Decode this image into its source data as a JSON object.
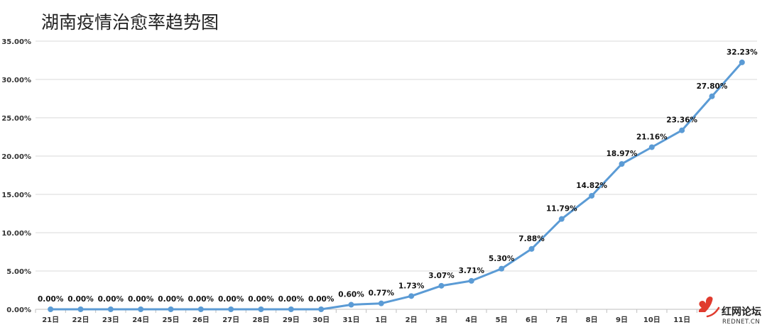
{
  "chart_data": {
    "type": "line",
    "title": "湖南疫情治愈率趋势图",
    "categories": [
      "21日",
      "22日",
      "23日",
      "24日",
      "25日",
      "26日",
      "27日",
      "28日",
      "29日",
      "30日",
      "31日",
      "1日",
      "2日",
      "3日",
      "4日",
      "5日",
      "6日",
      "7日",
      "8日",
      "9日",
      "10日",
      "11日",
      "",
      ""
    ],
    "series": [
      {
        "values": [
          0,
          0,
          0,
          0,
          0,
          0,
          0,
          0,
          0,
          0,
          0.6,
          0.77,
          1.73,
          3.07,
          3.71,
          5.3,
          7.88,
          11.79,
          14.82,
          18.97,
          21.16,
          23.36,
          27.8,
          32.23
        ],
        "labels": [
          "0.00%",
          "0.00%",
          "0.00%",
          "0.00%",
          "0.00%",
          "0.00%",
          "0.00%",
          "0.00%",
          "0.00%",
          "0.00%",
          "0.60%",
          "0.77%",
          "1.73%",
          "3.07%",
          "3.71%",
          "5.30%",
          "7.88%",
          "11.79%",
          "14.82%",
          "18.97%",
          "21.16%",
          "23.36%",
          "27.80%",
          "32.23%"
        ],
        "color": "#5b9bd5"
      }
    ],
    "yticks": [
      "0.00%",
      "5.00%",
      "10.00%",
      "15.00%",
      "20.00%",
      "25.00%",
      "30.00%",
      "35.00%"
    ],
    "ylim": [
      0,
      35
    ],
    "xlabel": "",
    "ylabel": "",
    "grid": true,
    "legend": "none",
    "gridColor": "#d9d9d9"
  },
  "watermark": {
    "text": "红网论坛",
    "sub": "REDNET.CN",
    "icon": "rednet-logo-icon",
    "color": "#e03b2e"
  }
}
